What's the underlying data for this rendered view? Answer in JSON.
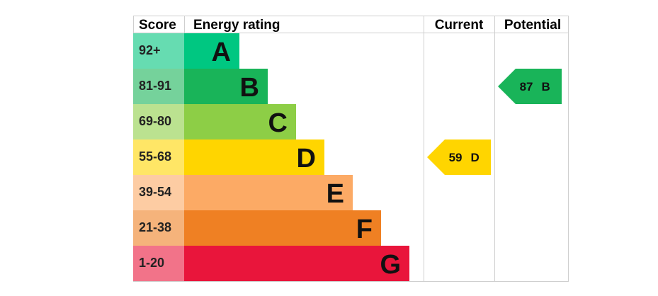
{
  "headers": {
    "score": "Score",
    "energy_rating": "Energy rating",
    "current": "Current",
    "potential": "Potential"
  },
  "chart_data": {
    "type": "bar",
    "bands": [
      {
        "letter": "A",
        "score": "92+",
        "color": "#00c781",
        "score_bg": "#66dcb1"
      },
      {
        "letter": "B",
        "score": "81-91",
        "color": "#19b459",
        "score_bg": "#75d29b"
      },
      {
        "letter": "C",
        "score": "69-80",
        "color": "#8dce46",
        "score_bg": "#bbe290"
      },
      {
        "letter": "D",
        "score": "55-68",
        "color": "#ffd500",
        "score_bg": "#ffe666"
      },
      {
        "letter": "E",
        "score": "39-54",
        "color": "#fcaa65",
        "score_bg": "#fdcca3"
      },
      {
        "letter": "F",
        "score": "21-38",
        "color": "#ef8023",
        "score_bg": "#f5b37b"
      },
      {
        "letter": "G",
        "score": "1-20",
        "color": "#e9153b",
        "score_bg": "#f27389"
      }
    ],
    "current": {
      "value": "59",
      "band": "D",
      "color": "#ffd500"
    },
    "potential": {
      "value": "87",
      "band": "B",
      "color": "#19b459"
    }
  }
}
